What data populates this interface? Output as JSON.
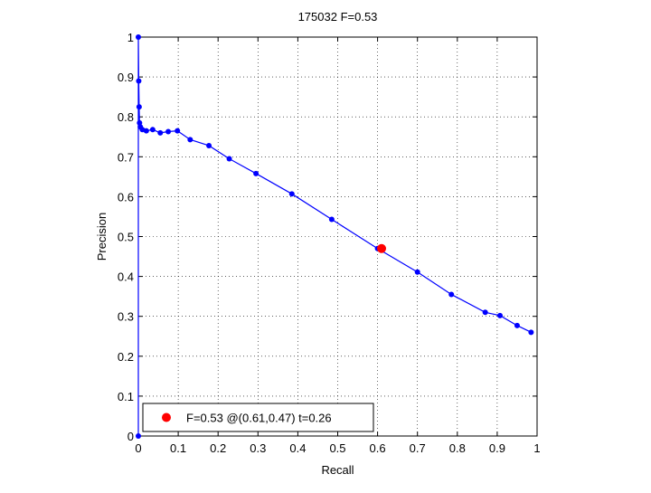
{
  "chart_data": {
    "type": "line",
    "title": "175032 F=0.53",
    "xlabel": "Recall",
    "ylabel": "Precision",
    "xlim": [
      0,
      1
    ],
    "ylim": [
      0,
      1
    ],
    "grid": true,
    "xticks": [
      0,
      0.1,
      0.2,
      0.3,
      0.4,
      0.5,
      0.6,
      0.7,
      0.8,
      0.9,
      1
    ],
    "yticks": [
      0,
      0.1,
      0.2,
      0.3,
      0.4,
      0.5,
      0.6,
      0.7,
      0.8,
      0.9,
      1
    ],
    "xtick_labels": [
      "0",
      "0.1",
      "0.2",
      "0.3",
      "0.4",
      "0.5",
      "0.6",
      "0.7",
      "0.8",
      "0.9",
      "1"
    ],
    "ytick_labels": [
      "0",
      "0.1",
      "0.2",
      "0.3",
      "0.4",
      "0.5",
      "0.6",
      "0.7",
      "0.8",
      "0.9",
      "1"
    ],
    "series": [
      {
        "color": "#0000ff",
        "marker": "dot",
        "points": [
          [
            0.0,
            0.0
          ],
          [
            0.0,
            1.0
          ],
          [
            0.001,
            0.89
          ],
          [
            0.002,
            0.825
          ],
          [
            0.003,
            0.785
          ],
          [
            0.005,
            0.775
          ],
          [
            0.01,
            0.768
          ],
          [
            0.02,
            0.765
          ],
          [
            0.036,
            0.768
          ],
          [
            0.055,
            0.76
          ],
          [
            0.075,
            0.763
          ],
          [
            0.098,
            0.765
          ],
          [
            0.13,
            0.743
          ],
          [
            0.177,
            0.728
          ],
          [
            0.228,
            0.695
          ],
          [
            0.295,
            0.658
          ],
          [
            0.385,
            0.607
          ],
          [
            0.485,
            0.543
          ],
          [
            0.6,
            0.47
          ],
          [
            0.7,
            0.411
          ],
          [
            0.785,
            0.355
          ],
          [
            0.87,
            0.31
          ],
          [
            0.907,
            0.302
          ],
          [
            0.95,
            0.277
          ],
          [
            0.985,
            0.26
          ]
        ]
      }
    ],
    "highlight": {
      "recall": 0.61,
      "precision": 0.47,
      "color": "#ff0000",
      "label": "F=0.53 @(0.61,0.47) t=0.26"
    },
    "legend": {
      "position": "bottom-left",
      "entries": [
        "F=0.53 @(0.61,0.47) t=0.26"
      ]
    }
  }
}
